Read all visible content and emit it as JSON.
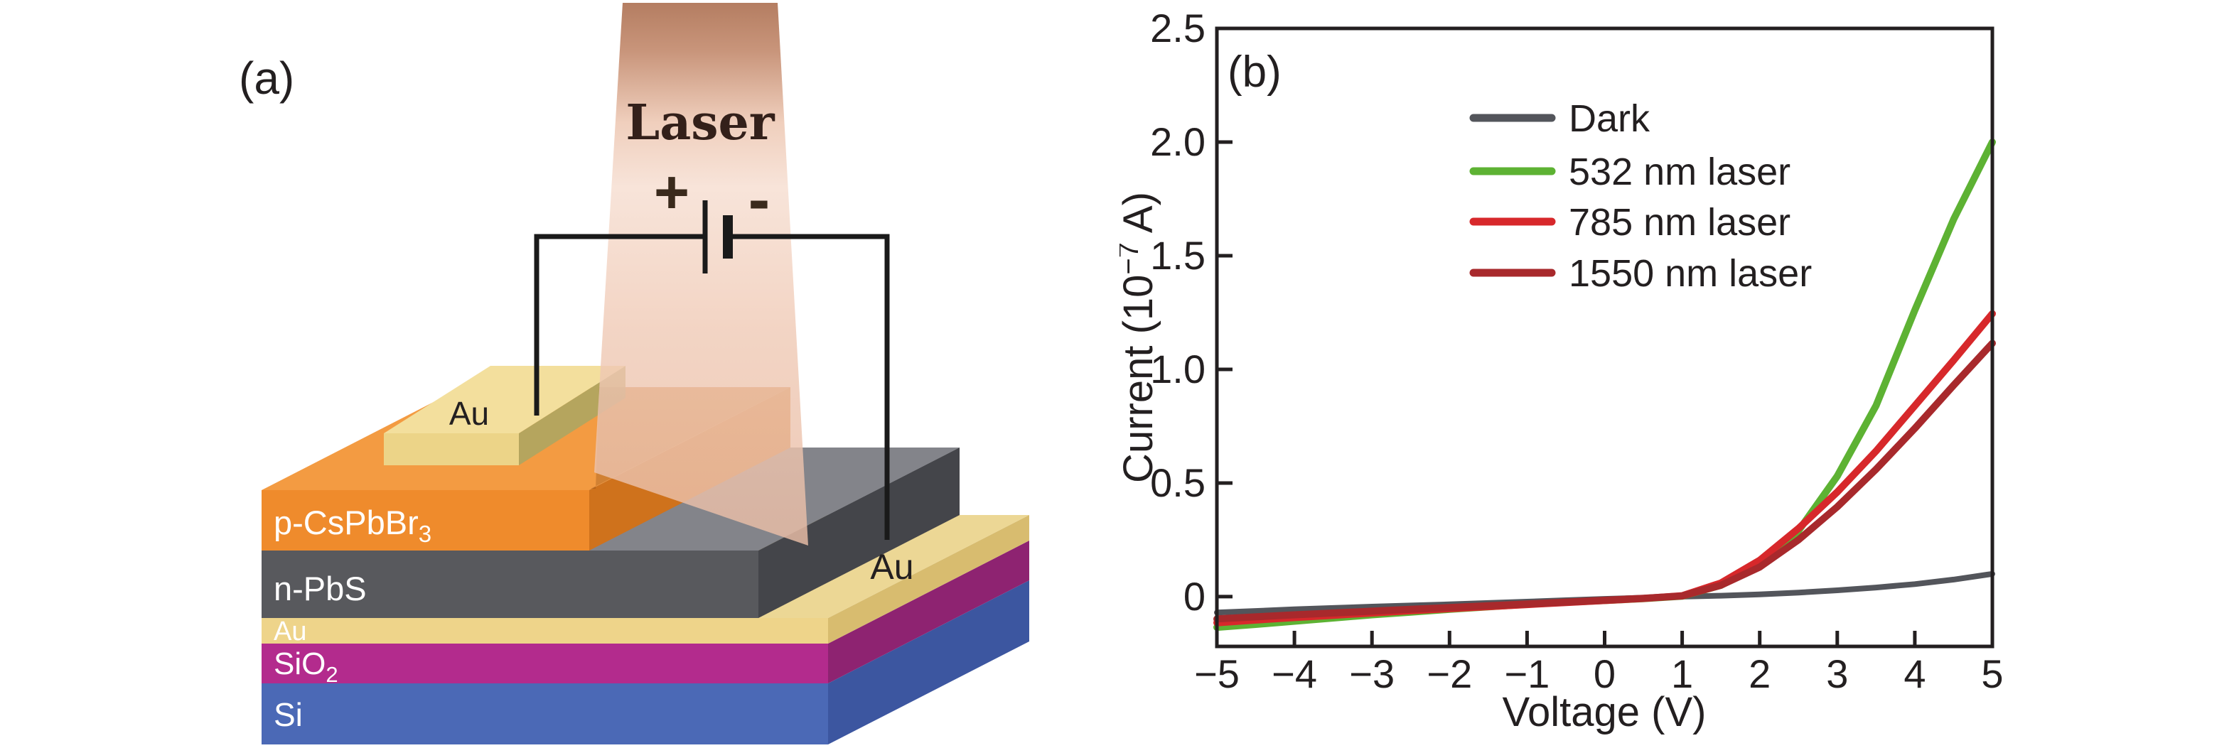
{
  "panel_a": {
    "label": "(a)",
    "laser_label": "Laser",
    "plus_sign": "+",
    "minus_sign": "-",
    "pad_contact_label": "Au",
    "right_contact_label": "Au",
    "layers": {
      "p_layer": {
        "base": "p-CsPbBr",
        "sub": "3"
      },
      "n_layer": "n-PbS",
      "au_layer": "Au",
      "sio_layer": {
        "base": "SiO",
        "sub": "2"
      },
      "si_layer": "Si"
    },
    "colors": {
      "orange_front": "#ef8b2c",
      "orange_top": "#f39b42",
      "orange_right": "#cf721c",
      "gray_front": "#58595d",
      "gray_top": "#83848a",
      "gray_right": "#44454a",
      "gold_front": "#eed48a",
      "gold_top": "#ecd795",
      "gold_right": "#d8bc6f",
      "magenta_front": "#b32b8d",
      "magenta_right": "#8e2371",
      "blue_front": "#4b69b6",
      "blue_right": "#3c56a0",
      "pad_front": "#ecd488",
      "pad_top": "#f3df9d",
      "pad_right": "#b5a55e",
      "beam_top": "#a4613f",
      "beam_light": "#f6ded1",
      "beam_bottom": "#e9bda6",
      "wire": "#1a1a1a"
    }
  },
  "panel_b": {
    "label": "(b)",
    "chart_data": {
      "type": "line",
      "title": "",
      "xlabel": "Voltage (V)",
      "ylabel_parts": {
        "pre": "Current (10",
        "sup": "−7",
        "post": " A)"
      },
      "xlim": [
        -5,
        5
      ],
      "ylim": [
        -0.219,
        2.5
      ],
      "grid": false,
      "legend_position": "upper-left-inside",
      "xticks": [
        -5,
        -4,
        -3,
        -2,
        -1,
        0,
        1,
        2,
        3,
        4,
        5
      ],
      "xtick_labels": [
        "−5",
        "−4",
        "−3",
        "−2",
        "−1",
        "0",
        "1",
        "2",
        "3",
        "4",
        "5"
      ],
      "yticks": [
        0,
        0.5,
        1.0,
        1.5,
        2.0,
        2.5
      ],
      "ytick_labels": [
        "0",
        "0.5",
        "1.0",
        "1.5",
        "2.0",
        "2.5"
      ],
      "x": [
        -5,
        -4.5,
        -4,
        -3.5,
        -3,
        -2.5,
        -2,
        -1.5,
        -1,
        -0.5,
        0,
        0.5,
        1,
        1.5,
        2,
        2.5,
        3,
        3.5,
        4,
        4.5,
        5
      ],
      "series": [
        {
          "name": "Dark",
          "color": "#53555b",
          "width": 8,
          "y": [
            -0.07,
            -0.063,
            -0.056,
            -0.05,
            -0.044,
            -0.039,
            -0.034,
            -0.028,
            -0.022,
            -0.016,
            -0.01,
            -0.005,
            0.0,
            0.004,
            0.01,
            0.018,
            0.028,
            0.04,
            0.055,
            0.075,
            0.1
          ]
        },
        {
          "name": "532 nm laser",
          "color": "#5db233",
          "width": 10,
          "y": [
            -0.135,
            -0.122,
            -0.108,
            -0.094,
            -0.08,
            -0.068,
            -0.056,
            -0.045,
            -0.034,
            -0.025,
            -0.017,
            -0.009,
            0.002,
            0.05,
            0.14,
            0.29,
            0.53,
            0.84,
            1.26,
            1.66,
            2.0
          ]
        },
        {
          "name": "785 nm laser",
          "color": "#d7282b",
          "width": 10,
          "y": [
            -0.115,
            -0.103,
            -0.092,
            -0.082,
            -0.072,
            -0.062,
            -0.053,
            -0.044,
            -0.035,
            -0.026,
            -0.017,
            -0.008,
            0.004,
            0.06,
            0.16,
            0.3,
            0.46,
            0.64,
            0.84,
            1.04,
            1.245
          ]
        },
        {
          "name": "1550 nm laser",
          "color": "#a8292c",
          "width": 10,
          "y": [
            -0.098,
            -0.089,
            -0.08,
            -0.072,
            -0.064,
            -0.056,
            -0.048,
            -0.04,
            -0.032,
            -0.024,
            -0.016,
            -0.007,
            0.003,
            0.05,
            0.13,
            0.25,
            0.395,
            0.56,
            0.74,
            0.93,
            1.115
          ]
        }
      ],
      "legend": [
        {
          "label": "Dark",
          "color": "#53555b"
        },
        {
          "label": "532 nm laser",
          "color": "#5db233"
        },
        {
          "label": "785 nm laser",
          "color": "#d7282b"
        },
        {
          "label": "1550 nm laser",
          "color": "#a8292c"
        }
      ]
    }
  }
}
